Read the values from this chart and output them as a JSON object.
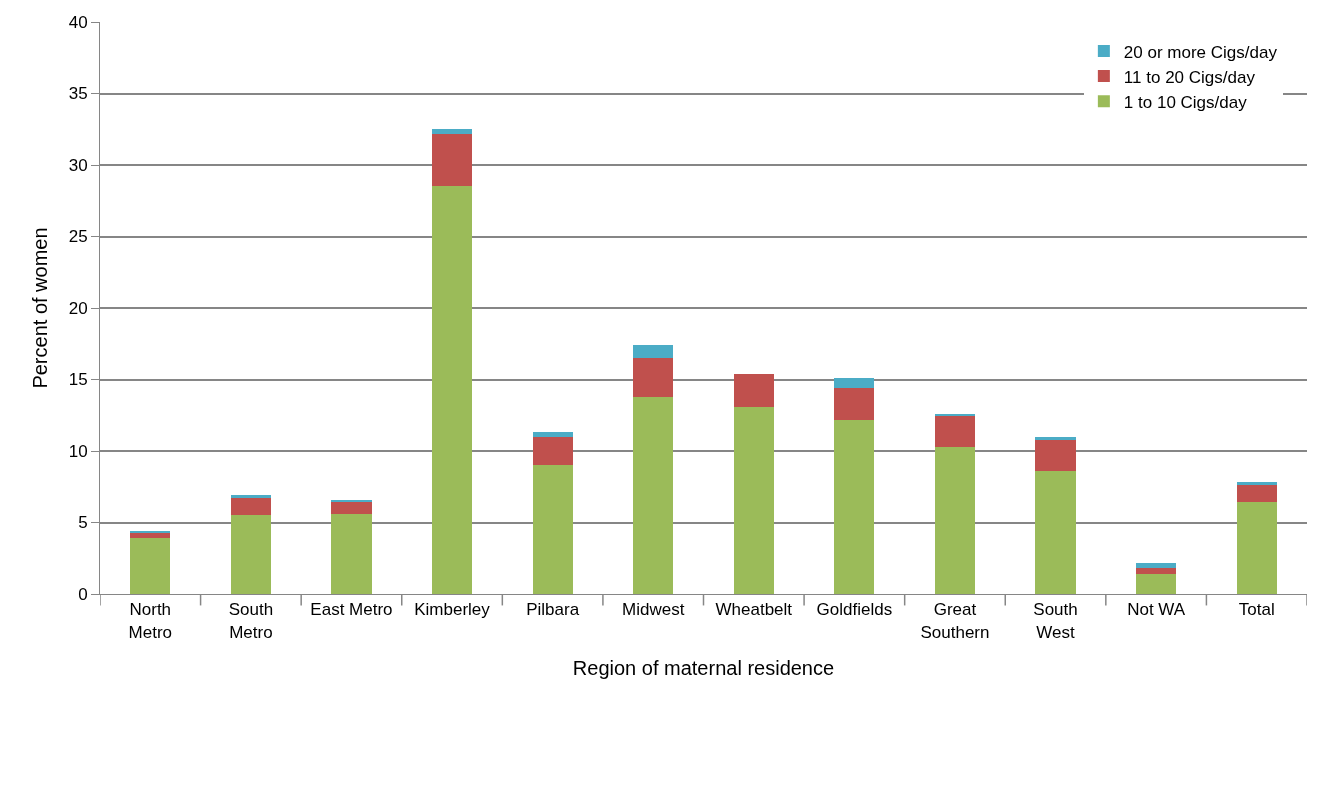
{
  "chart_data": {
    "type": "bar",
    "stacked": true,
    "xlabel": "Region of maternal residence",
    "ylabel": "Percent of women",
    "categories": [
      "North Metro",
      "South Metro",
      "East Metro",
      "Kimberley",
      "Pilbara",
      "Midwest",
      "Wheatbelt",
      "Goldfields",
      "Great Southern",
      "South West",
      "Not WA",
      "Total"
    ],
    "series": [
      {
        "name": "1 to 10 Cigs/day",
        "color": "#9bbb59",
        "values": [
          3.9,
          5.5,
          5.6,
          28.5,
          9.0,
          13.8,
          13.1,
          12.2,
          10.3,
          8.6,
          1.4,
          6.4
        ]
      },
      {
        "name": "11 to 20 Cigs/day",
        "color": "#c0504d",
        "values": [
          0.35,
          1.2,
          0.9,
          3.7,
          2.0,
          2.7,
          2.3,
          2.2,
          2.2,
          2.2,
          0.4,
          1.2
        ]
      },
      {
        "name": "20 or more Cigs/day",
        "color": "#4bacc6",
        "values": [
          0.15,
          0.2,
          0.1,
          0.3,
          0.3,
          0.9,
          0,
          0.7,
          0.1,
          0.2,
          0.4,
          0.2
        ]
      }
    ],
    "ylim": [
      0,
      40
    ],
    "yticks": [
      0,
      5,
      10,
      15,
      20,
      25,
      30,
      35,
      40
    ],
    "grid": "y",
    "legend": "top right"
  }
}
